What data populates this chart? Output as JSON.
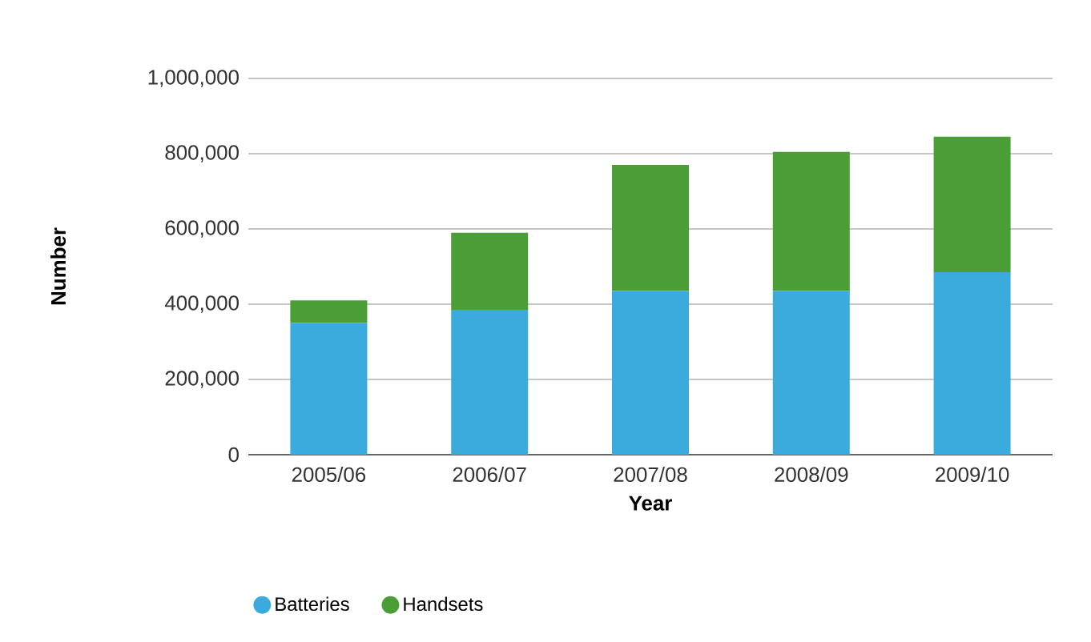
{
  "chart_data": {
    "type": "bar",
    "stacked": true,
    "xlabel": "Year",
    "ylabel": "Number",
    "categories": [
      "2005/06",
      "2006/07",
      "2007/08",
      "2008/09",
      "2009/10"
    ],
    "series": [
      {
        "name": "Batteries",
        "color": "#3aabdc",
        "values": [
          350000,
          385000,
          435000,
          435000,
          485000
        ]
      },
      {
        "name": "Handsets",
        "color": "#4a9e35",
        "values": [
          60000,
          205000,
          335000,
          370000,
          360000
        ]
      }
    ],
    "ylim": [
      0,
      1000000
    ],
    "yticks": [
      0,
      {
        "value": 200000,
        "label": "200,000"
      },
      {
        "value": 400000,
        "label": "400,000"
      },
      {
        "value": 600000,
        "label": "600,000"
      },
      {
        "value": 800000,
        "label": "800,000"
      },
      {
        "value": 1000000,
        "label": "1,000,000"
      }
    ],
    "grid": "y",
    "legend": "bottom"
  }
}
